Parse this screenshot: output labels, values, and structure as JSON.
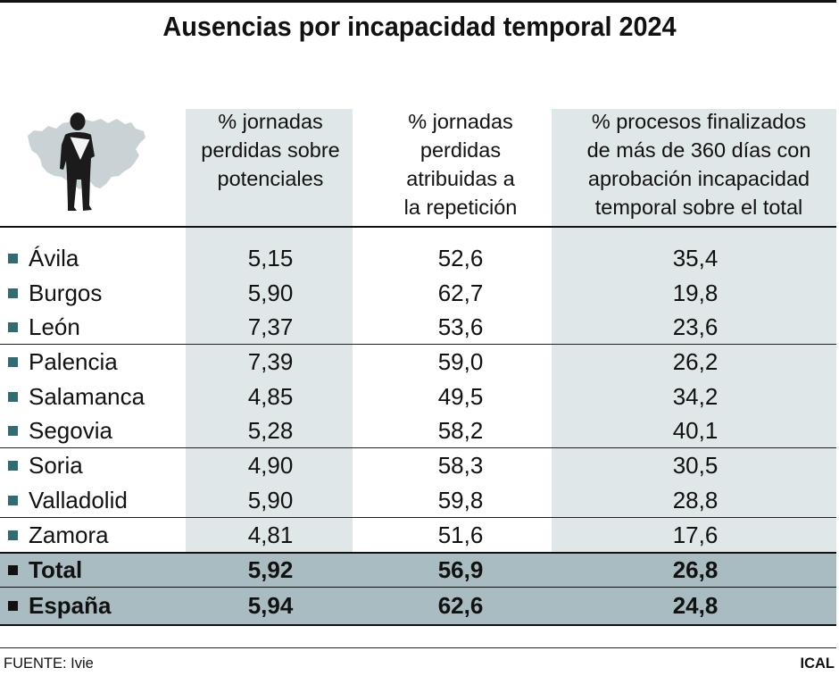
{
  "chart_data": {
    "type": "table",
    "title": "Ausencias por incapacidad temporal 2024",
    "columns": [
      "% jornadas\nperdidas sobre\npotenciales",
      "% jornadas\nperdidas\natribuidas a\nla repetición",
      "% procesos finalizados\nde más de 360 días con\naprobación incapacidad\ntemporal sobre el total"
    ],
    "rows": [
      {
        "label": "Ávila",
        "values": [
          "5,15",
          "52,6",
          "35,4"
        ]
      },
      {
        "label": "Burgos",
        "values": [
          "5,90",
          "62,7",
          "19,8"
        ]
      },
      {
        "label": "León",
        "values": [
          "7,37",
          "53,6",
          "23,6"
        ]
      },
      {
        "label": "Palencia",
        "values": [
          "7,39",
          "59,0",
          "26,2"
        ]
      },
      {
        "label": "Salamanca",
        "values": [
          "4,85",
          "49,5",
          "34,2"
        ]
      },
      {
        "label": "Segovia",
        "values": [
          "5,28",
          "58,2",
          "40,1"
        ]
      },
      {
        "label": "Soria",
        "values": [
          "4,90",
          "58,3",
          "30,5"
        ]
      },
      {
        "label": "Valladolid",
        "values": [
          "5,90",
          "59,8",
          "28,8"
        ]
      },
      {
        "label": "Zamora",
        "values": [
          "4,81",
          "51,6",
          "17,6"
        ]
      }
    ],
    "totals": [
      {
        "label": "Total",
        "values": [
          "5,92",
          "56,9",
          "26,8"
        ]
      },
      {
        "label": "España",
        "values": [
          "5,94",
          "62,6",
          "24,8"
        ]
      }
    ]
  },
  "footer": {
    "source": "FUENTE: Ivie",
    "brand": "ICAL"
  },
  "colors": {
    "column_shade": "#e0e7e8",
    "total_row": "#a9bcc1",
    "bullet": "#2f6c74",
    "bullet_total": "#111111"
  },
  "icons": {
    "header_illustration": "castilla-y-leon-map-with-injured-person-icon",
    "row_bullet": "square-bullet-icon"
  }
}
